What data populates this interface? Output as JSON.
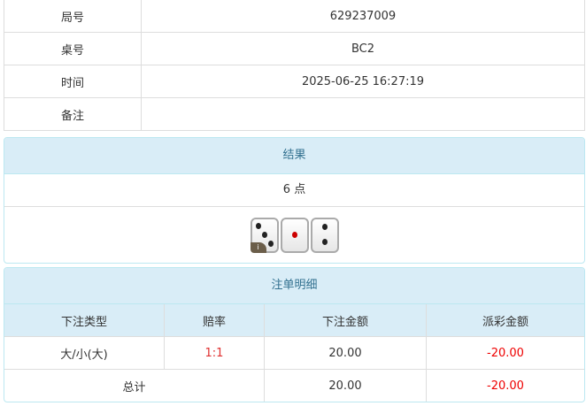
{
  "info": {
    "rows": [
      {
        "label": "局号",
        "value": "629237009"
      },
      {
        "label": "桌号",
        "value": "BC2"
      },
      {
        "label": "时间",
        "value": "2025-06-25 16:27:19"
      },
      {
        "label": "备注",
        "value": ""
      }
    ]
  },
  "result": {
    "title": "结果",
    "points": "6 点",
    "dice": [
      3,
      1,
      2
    ],
    "badge": "i"
  },
  "bets": {
    "title": "注单明细",
    "headers": [
      "下注类型",
      "赔率",
      "下注金额",
      "派彩金额"
    ],
    "rows": [
      {
        "type": "大/小(大)",
        "odds": "1:1",
        "amount": "20.00",
        "payout": "-20.00"
      }
    ],
    "total": {
      "label": "总计",
      "amount": "20.00",
      "payout": "-20.00"
    }
  },
  "colors": {
    "header_bg": "#d9edf7",
    "header_text": "#31708f",
    "negative": "#ee0000",
    "odds": "#e03030"
  }
}
